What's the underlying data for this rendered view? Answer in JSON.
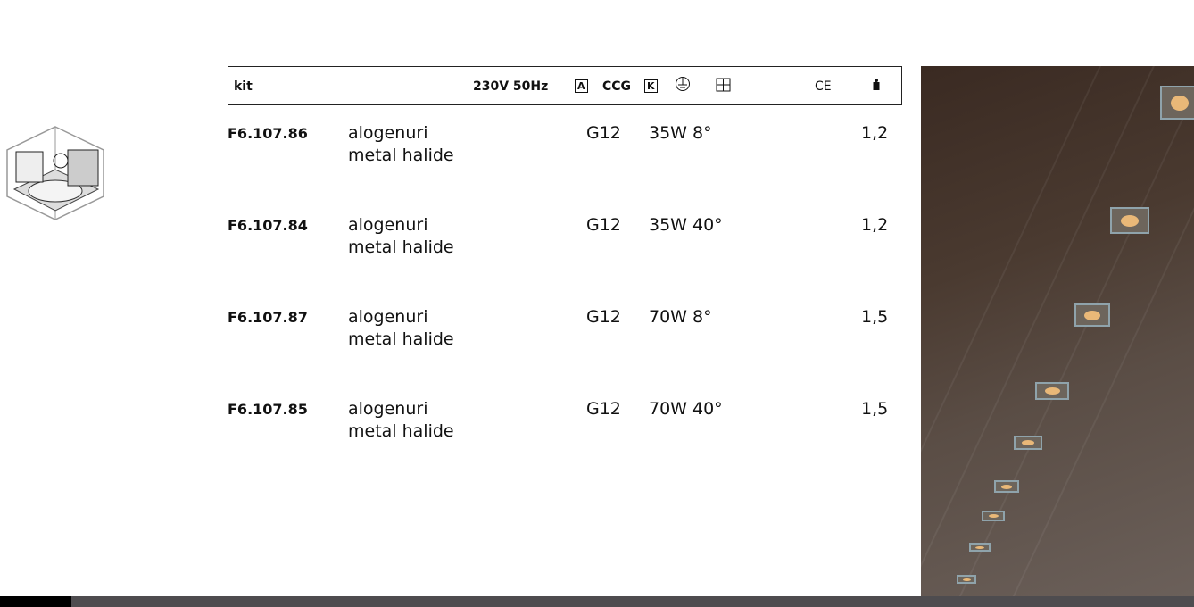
{
  "header": {
    "kit": "kit",
    "voltage": "230V 50Hz",
    "class_a": "A",
    "ccg": "CCG",
    "class_k": "K",
    "earth_icon": "earth-ground-icon",
    "double_insulation_icon": "double-insulation-icon",
    "ce": "CE",
    "weight_icon": "weight-icon"
  },
  "products": [
    {
      "code": "F6.107.86",
      "desc1": "alogenuri",
      "desc2": "metal halide",
      "socket": "G12",
      "power": "35W 8°",
      "weight": "1,2"
    },
    {
      "code": "F6.107.84",
      "desc1": "alogenuri",
      "desc2": "metal halide",
      "socket": "G12",
      "power": "35W 40°",
      "weight": "1,2"
    },
    {
      "code": "F6.107.87",
      "desc1": "alogenuri",
      "desc2": "metal halide",
      "socket": "G12",
      "power": "70W 8°",
      "weight": "1,5"
    },
    {
      "code": "F6.107.85",
      "desc1": "alogenuri",
      "desc2": "metal halide",
      "socket": "G12",
      "power": "70W 40°",
      "weight": "1,5"
    }
  ]
}
